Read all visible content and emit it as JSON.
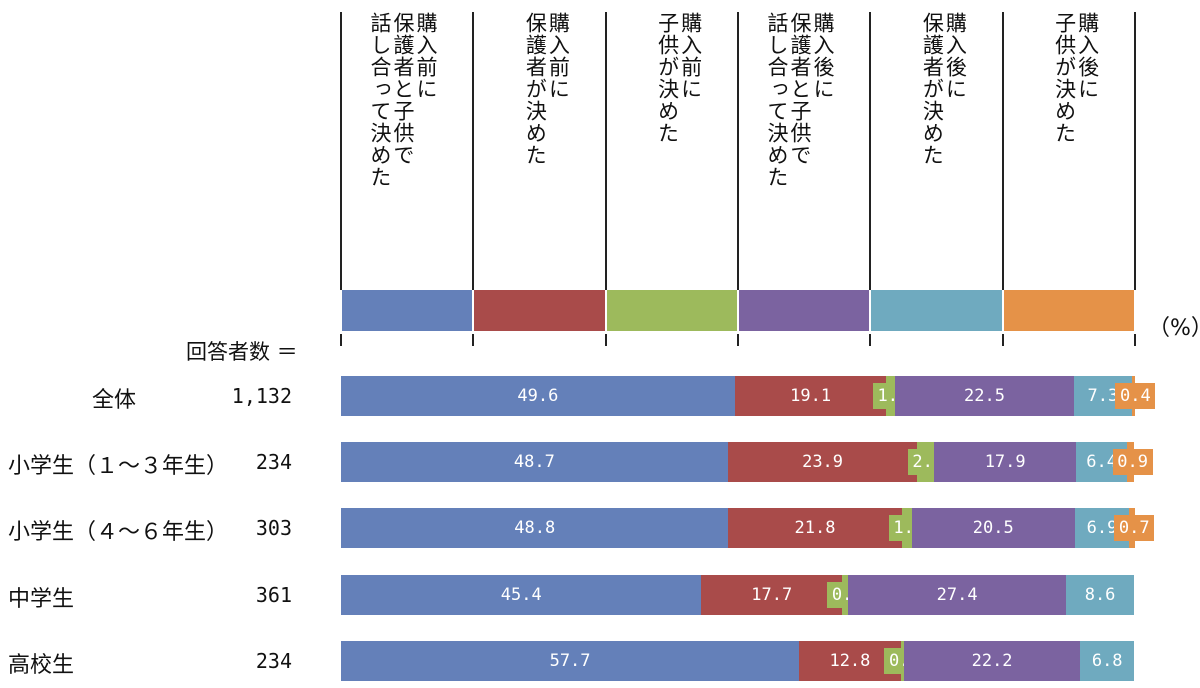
{
  "chart_data": {
    "type": "bar",
    "stacked": true,
    "orientation": "horizontal",
    "unit_label": "（%）",
    "respondents_label": "回答者数 ＝",
    "series": [
      {
        "name": "購入前に\n保護者と子供で\n話し合って決めた",
        "color": "#6480b9"
      },
      {
        "name": "購入前に\n保護者が決めた",
        "color": "#a94b4a"
      },
      {
        "name": "購入前に\n子供が決めた",
        "color": "#9dba5c"
      },
      {
        "name": "購入後に\n保護者と子供で\n話し合って決めた",
        "color": "#7b63a0"
      },
      {
        "name": "購入後に\n保護者が決めた",
        "color": "#6faabf"
      },
      {
        "name": "購入後に\n子供が決めた",
        "color": "#e59248"
      }
    ],
    "categories": [
      {
        "label": "全体",
        "n": "1,132",
        "values": [
          49.6,
          19.1,
          1.1,
          22.5,
          7.3,
          0.4
        ]
      },
      {
        "label": "小学生（１～３年生）",
        "n": "234",
        "values": [
          48.7,
          23.9,
          2.1,
          17.9,
          6.4,
          0.9
        ]
      },
      {
        "label": "小学生（４～６年生）",
        "n": "303",
        "values": [
          48.8,
          21.8,
          1.3,
          20.5,
          6.9,
          0.7
        ]
      },
      {
        "label": "中学生",
        "n": "361",
        "values": [
          45.4,
          17.7,
          0.8,
          27.4,
          8.6,
          null
        ]
      },
      {
        "label": "高校生",
        "n": "234",
        "values": [
          57.7,
          12.8,
          0.4,
          22.2,
          6.8,
          null
        ]
      }
    ]
  }
}
